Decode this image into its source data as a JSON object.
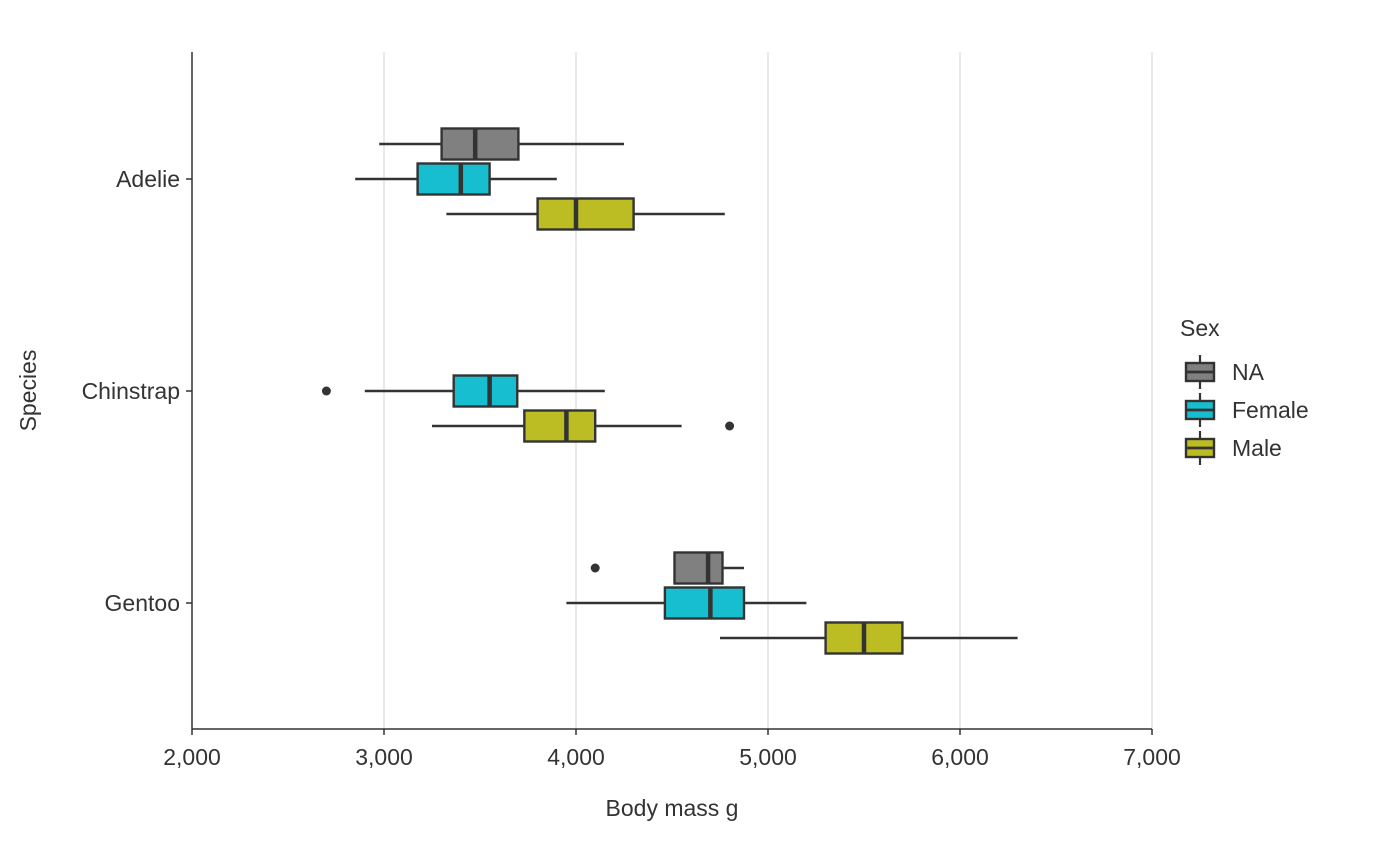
{
  "chart_data": {
    "type": "boxplot",
    "orientation": "horizontal",
    "xlabel": "Body mass g",
    "ylabel": "Species",
    "xlim": [
      2000,
      7000
    ],
    "x_ticks": [
      2000,
      3000,
      4000,
      5000,
      6000,
      7000
    ],
    "x_tick_labels": [
      "2,000",
      "3,000",
      "4,000",
      "5,000",
      "6,000",
      "7,000"
    ],
    "categories": [
      "Adelie",
      "Chinstrap",
      "Gentoo"
    ],
    "grid": "vertical major",
    "legend": {
      "title": "Sex",
      "position": "right",
      "entries": [
        {
          "name": "NA",
          "color": "#808080"
        },
        {
          "name": "Female",
          "color": "#17becf"
        },
        {
          "name": "Male",
          "color": "#bcbd22"
        }
      ]
    },
    "series": [
      {
        "name": "NA",
        "color": "#808080",
        "boxes": [
          {
            "category": "Adelie",
            "min": 2975,
            "q1": 3300,
            "median": 3475,
            "q3": 3700,
            "max": 4250,
            "outliers": []
          },
          {
            "category": "Gentoo",
            "min": 4875,
            "q1": 4513,
            "median": 4688,
            "q3": 4763,
            "max": 4875,
            "outliers": [
              4100
            ],
            "whisker_low": 4513
          }
        ]
      },
      {
        "name": "Female",
        "color": "#17becf",
        "boxes": [
          {
            "category": "Adelie",
            "min": 2850,
            "q1": 3175,
            "median": 3400,
            "q3": 3550,
            "max": 3900,
            "outliers": []
          },
          {
            "category": "Chinstrap",
            "min": 2900,
            "q1": 3363,
            "median": 3550,
            "q3": 3694,
            "max": 4150,
            "outliers": [
              2700
            ]
          },
          {
            "category": "Gentoo",
            "min": 3950,
            "q1": 4463,
            "median": 4700,
            "q3": 4875,
            "max": 5200,
            "outliers": []
          }
        ]
      },
      {
        "name": "Male",
        "color": "#bcbd22",
        "boxes": [
          {
            "category": "Adelie",
            "min": 3325,
            "q1": 3800,
            "median": 4000,
            "q3": 4300,
            "max": 4775,
            "outliers": []
          },
          {
            "category": "Chinstrap",
            "min": 3250,
            "q1": 3731,
            "median": 3950,
            "q3": 4100,
            "max": 4550,
            "outliers": [
              4800
            ]
          },
          {
            "category": "Gentoo",
            "min": 4750,
            "q1": 5300,
            "median": 5500,
            "q3": 5700,
            "max": 6300,
            "outliers": []
          }
        ]
      }
    ]
  }
}
